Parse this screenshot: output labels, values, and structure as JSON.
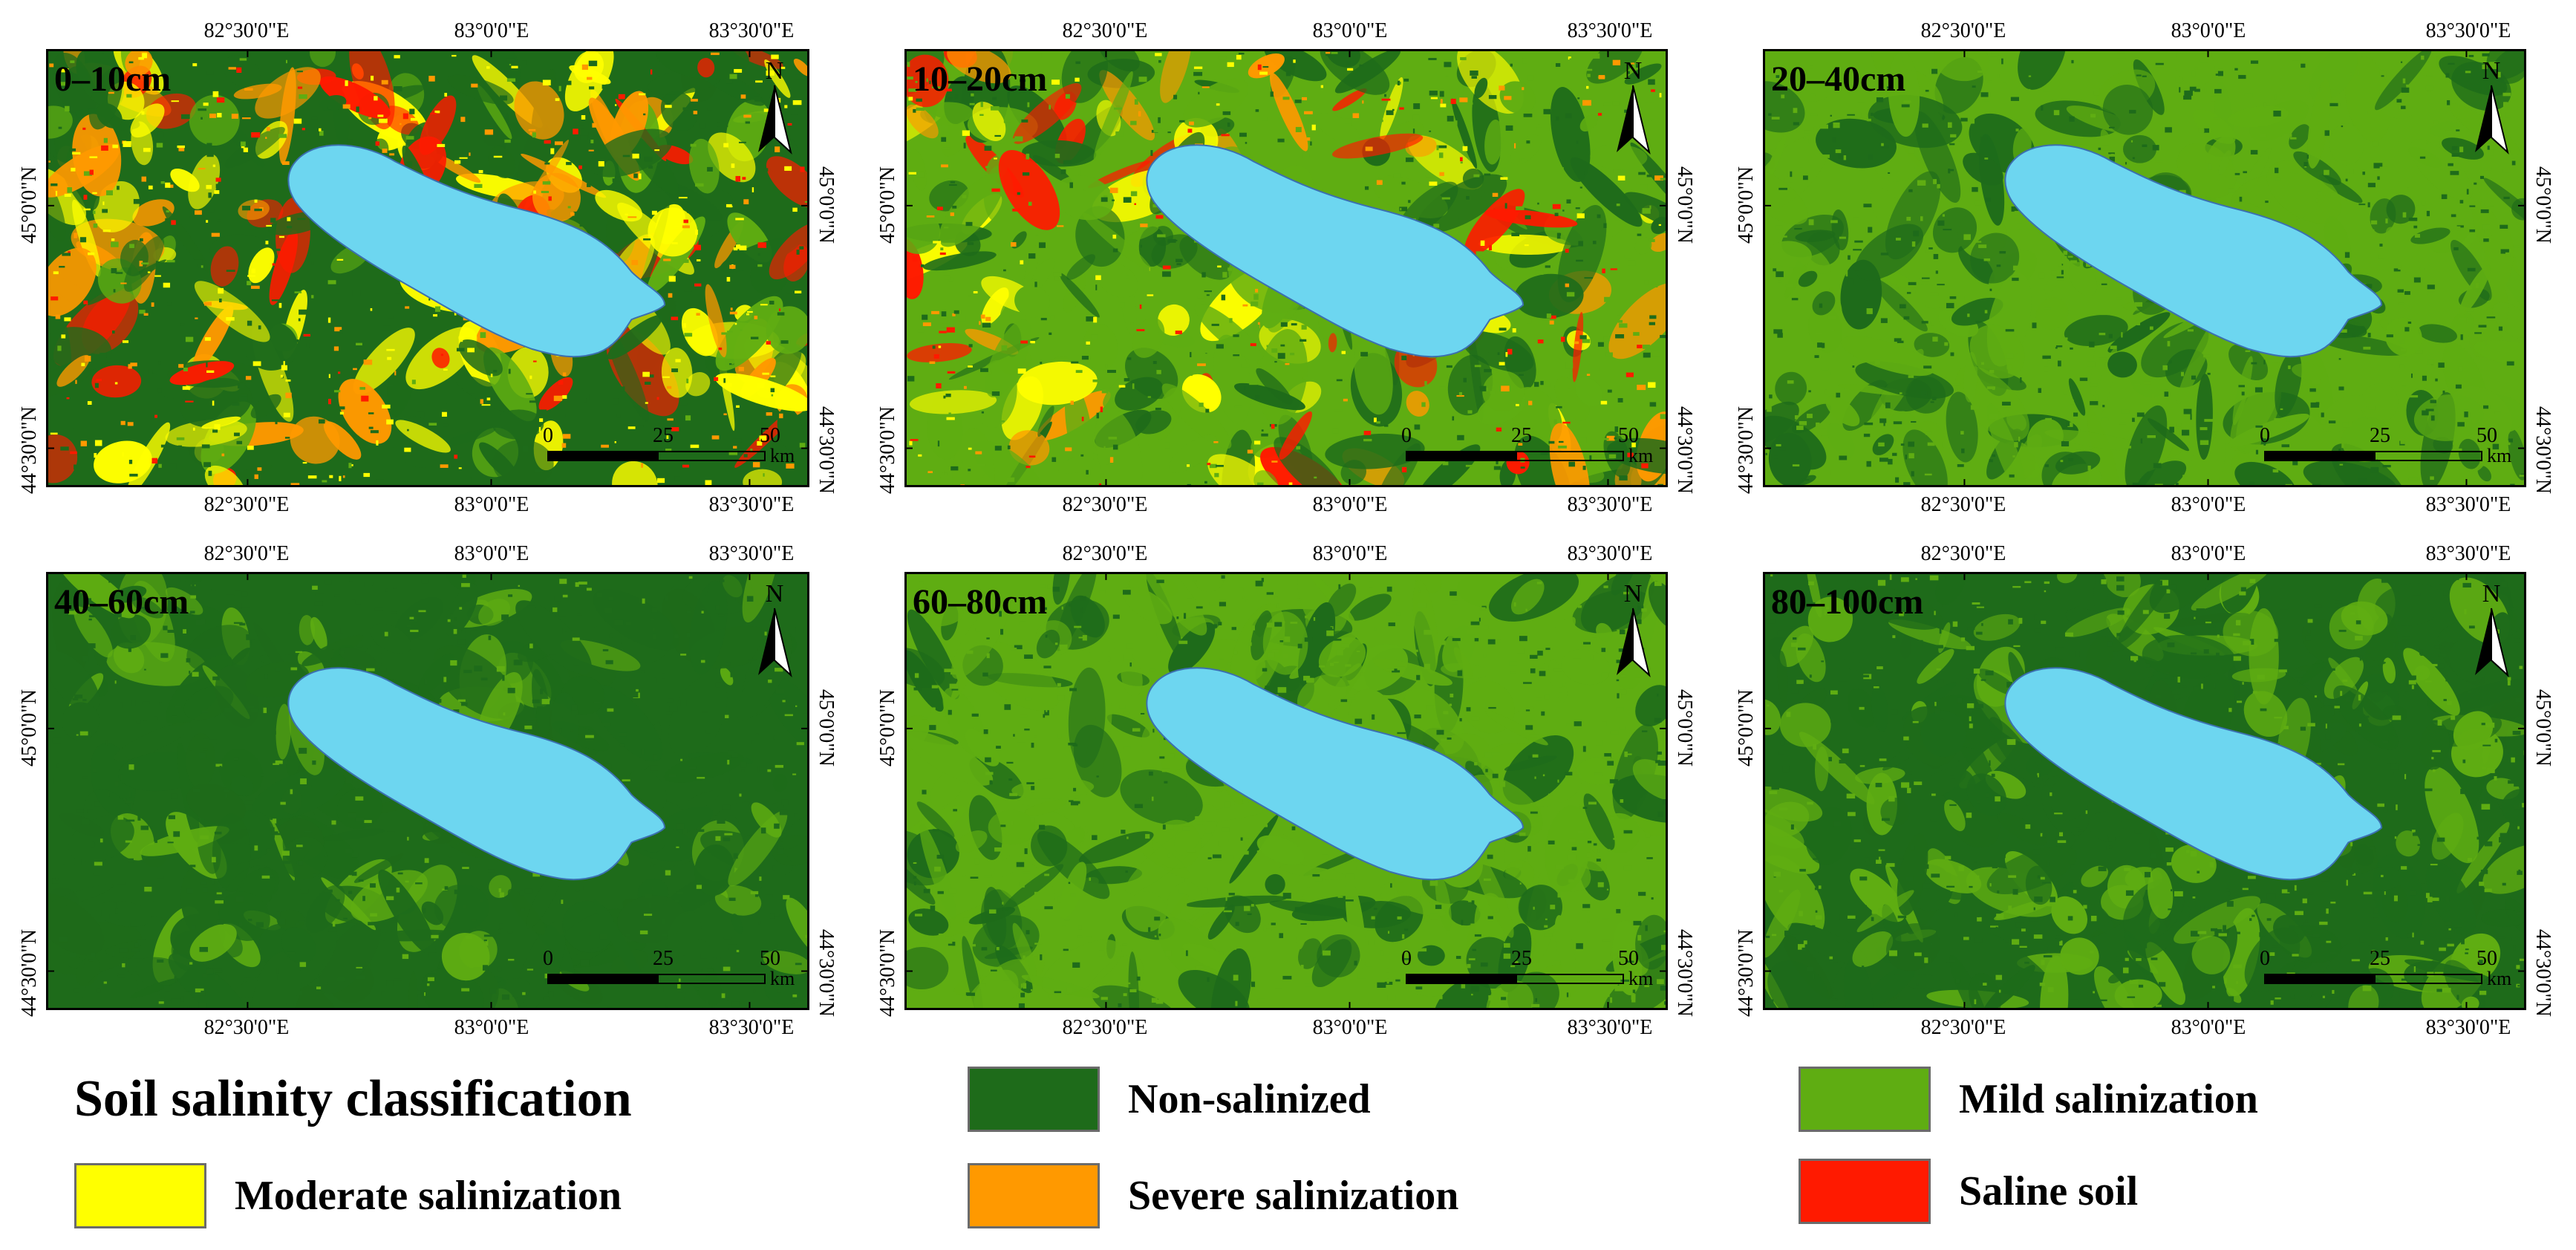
{
  "figure": {
    "legend_title": "Soil salinity classification",
    "classes": [
      {
        "label": "Non-salinized",
        "color": "#1e6b1a"
      },
      {
        "label": "Mild salinization",
        "color": "#5fad12"
      },
      {
        "label": "Moderate salinization",
        "color": "#ffff00"
      },
      {
        "label": "Severe salinization",
        "color": "#ff9900"
      },
      {
        "label": "Saline soil",
        "color": "#ff1a00"
      }
    ],
    "lake_color": "#6dd6f0",
    "lon_labels": [
      "82°30'0\"E",
      "83°0'0\"E",
      "83°30'0\"E"
    ],
    "lat_labels": [
      "45°0'0\"N",
      "44°30'0\"N"
    ],
    "north_label": "N",
    "scale": {
      "labels": [
        "0",
        "25",
        "50"
      ],
      "unit": "km"
    },
    "panels": [
      {
        "title": "0–10cm"
      },
      {
        "title": "10–20cm"
      },
      {
        "title": "20–40cm"
      },
      {
        "title": "40–60cm"
      },
      {
        "title": "60–80cm"
      },
      {
        "title": "80–100cm"
      }
    ]
  }
}
